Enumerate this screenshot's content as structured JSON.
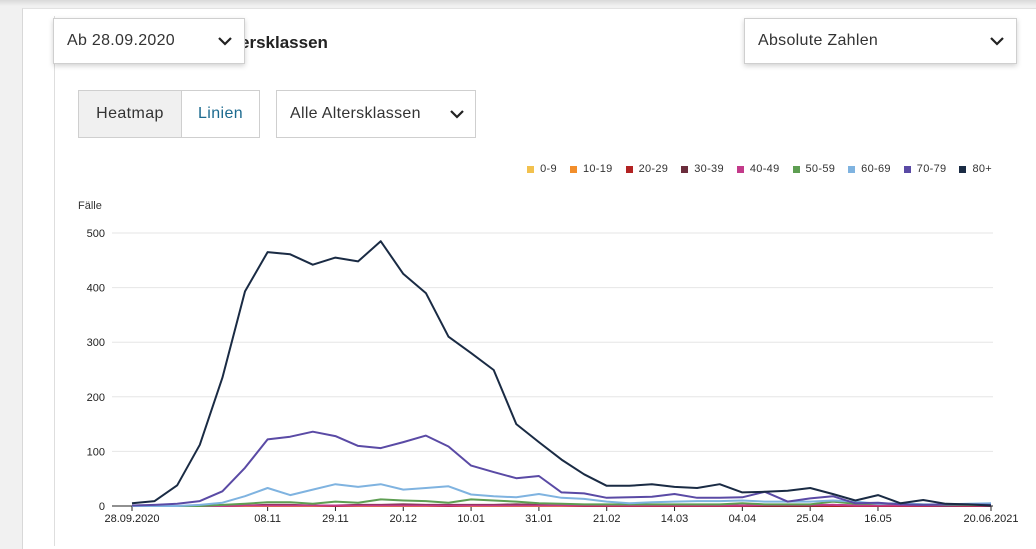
{
  "date_filter": {
    "label": "Ab 28.09.2020",
    "icon": "chevron-down-icon"
  },
  "section_title": "ersklassen",
  "mode_filter": {
    "label": "Absolute Zahlen",
    "icon": "chevron-down-icon"
  },
  "view_toggle": {
    "heatmap_label": "Heatmap",
    "lines_label": "Linien",
    "active": "Heatmap"
  },
  "age_select": {
    "label": "Alle Altersklassen",
    "icon": "chevron-down-icon"
  },
  "colors": {
    "link": "#1c6a8f",
    "gridline": "#e6e6e6",
    "axis": "#222222"
  },
  "chart_data": {
    "type": "line",
    "ylabel": "Fälle",
    "ylim": [
      0,
      500
    ],
    "yticks": [
      0,
      100,
      200,
      300,
      400,
      500
    ],
    "xtick_labels": [
      "28.09.2020",
      "08.11",
      "29.11",
      "20.12",
      "10.01",
      "31.01",
      "21.02",
      "14.03",
      "04.04",
      "25.04",
      "16.05",
      "20.06.2021"
    ],
    "x": [
      "28.09.2020",
      "05.10",
      "12.10",
      "19.10",
      "26.10",
      "02.11",
      "09.11",
      "16.11",
      "23.11",
      "30.11",
      "07.12",
      "14.12",
      "21.12",
      "28.12",
      "04.01",
      "11.01",
      "18.01",
      "25.01",
      "01.02",
      "08.02",
      "15.02",
      "22.02",
      "01.03",
      "08.03",
      "15.03",
      "22.03",
      "29.03",
      "05.04",
      "12.04",
      "19.04",
      "26.04",
      "03.05",
      "10.05",
      "17.05",
      "24.05",
      "31.05",
      "07.06",
      "14.06",
      "21.06"
    ],
    "legend": [
      "0-9",
      "10-19",
      "20-29",
      "30-39",
      "40-49",
      "50-59",
      "60-69",
      "70-79",
      "80+"
    ],
    "series": [
      {
        "name": "0-9",
        "color": "#f2c14e",
        "values": [
          0,
          0,
          0,
          0,
          0,
          0,
          0,
          0,
          0,
          0,
          0,
          0,
          0,
          0,
          0,
          0,
          0,
          0,
          0,
          0,
          0,
          0,
          0,
          0,
          0,
          0,
          0,
          0,
          0,
          0,
          0,
          0,
          0,
          0,
          0,
          0,
          0,
          0,
          0
        ]
      },
      {
        "name": "10-19",
        "color": "#f28e2b",
        "values": [
          0,
          0,
          0,
          0,
          0,
          0,
          0,
          0,
          0,
          0,
          0,
          0,
          0,
          0,
          0,
          0,
          0,
          0,
          0,
          0,
          0,
          0,
          0,
          0,
          0,
          0,
          0,
          0,
          0,
          0,
          0,
          0,
          0,
          0,
          0,
          0,
          0,
          0,
          0
        ]
      },
      {
        "name": "20-29",
        "color": "#b22222",
        "values": [
          0,
          0,
          0,
          0,
          0,
          1,
          1,
          1,
          1,
          0,
          1,
          1,
          1,
          1,
          0,
          1,
          1,
          1,
          1,
          1,
          0,
          0,
          0,
          0,
          0,
          0,
          0,
          0,
          0,
          0,
          0,
          0,
          0,
          0,
          0,
          0,
          0,
          0,
          0
        ]
      },
      {
        "name": "30-39",
        "color": "#6b2d3c",
        "values": [
          0,
          0,
          0,
          0,
          1,
          1,
          2,
          2,
          1,
          1,
          2,
          2,
          3,
          2,
          2,
          2,
          2,
          3,
          2,
          2,
          1,
          1,
          1,
          1,
          1,
          1,
          1,
          1,
          1,
          1,
          1,
          2,
          1,
          1,
          1,
          1,
          0,
          1,
          0
        ]
      },
      {
        "name": "40-49",
        "color": "#c33a8a",
        "values": [
          0,
          0,
          0,
          0,
          0,
          1,
          1,
          1,
          1,
          1,
          1,
          1,
          1,
          1,
          1,
          1,
          1,
          1,
          1,
          1,
          1,
          1,
          1,
          1,
          1,
          1,
          1,
          1,
          2,
          2,
          2,
          2,
          1,
          1,
          1,
          1,
          1,
          1,
          1
        ]
      },
      {
        "name": "50-59",
        "color": "#5e9e52",
        "values": [
          0,
          0,
          0,
          0,
          2,
          4,
          7,
          7,
          4,
          8,
          6,
          12,
          10,
          9,
          6,
          12,
          10,
          8,
          5,
          4,
          3,
          3,
          3,
          3,
          3,
          3,
          3,
          5,
          3,
          3,
          3,
          8,
          4,
          4,
          4,
          3,
          2,
          2,
          2
        ]
      },
      {
        "name": "60-69",
        "color": "#7fb3e0",
        "values": [
          0,
          0,
          0,
          2,
          6,
          18,
          33,
          20,
          30,
          40,
          35,
          40,
          30,
          33,
          36,
          21,
          18,
          16,
          22,
          15,
          13,
          8,
          5,
          7,
          8,
          9,
          9,
          10,
          8,
          8,
          8,
          10,
          8,
          4,
          5,
          3,
          3,
          4,
          5
        ]
      },
      {
        "name": "70-79",
        "color": "#5a4aa5",
        "values": [
          1,
          2,
          4,
          9,
          27,
          70,
          122,
          127,
          136,
          128,
          110,
          106,
          117,
          129,
          109,
          74,
          62,
          51,
          55,
          25,
          23,
          15,
          16,
          17,
          22,
          15,
          15,
          16,
          26,
          8,
          14,
          18,
          5,
          6,
          3,
          2,
          3,
          3,
          2
        ]
      },
      {
        "name": "80+",
        "color": "#1a2b44",
        "values": [
          5,
          9,
          38,
          112,
          235,
          393,
          465,
          461,
          442,
          455,
          448,
          485,
          425,
          390,
          310,
          280,
          249,
          150,
          117,
          85,
          58,
          37,
          37,
          40,
          35,
          33,
          40,
          25,
          26,
          28,
          33,
          22,
          10,
          20,
          5,
          11,
          4,
          3,
          1
        ]
      }
    ]
  }
}
